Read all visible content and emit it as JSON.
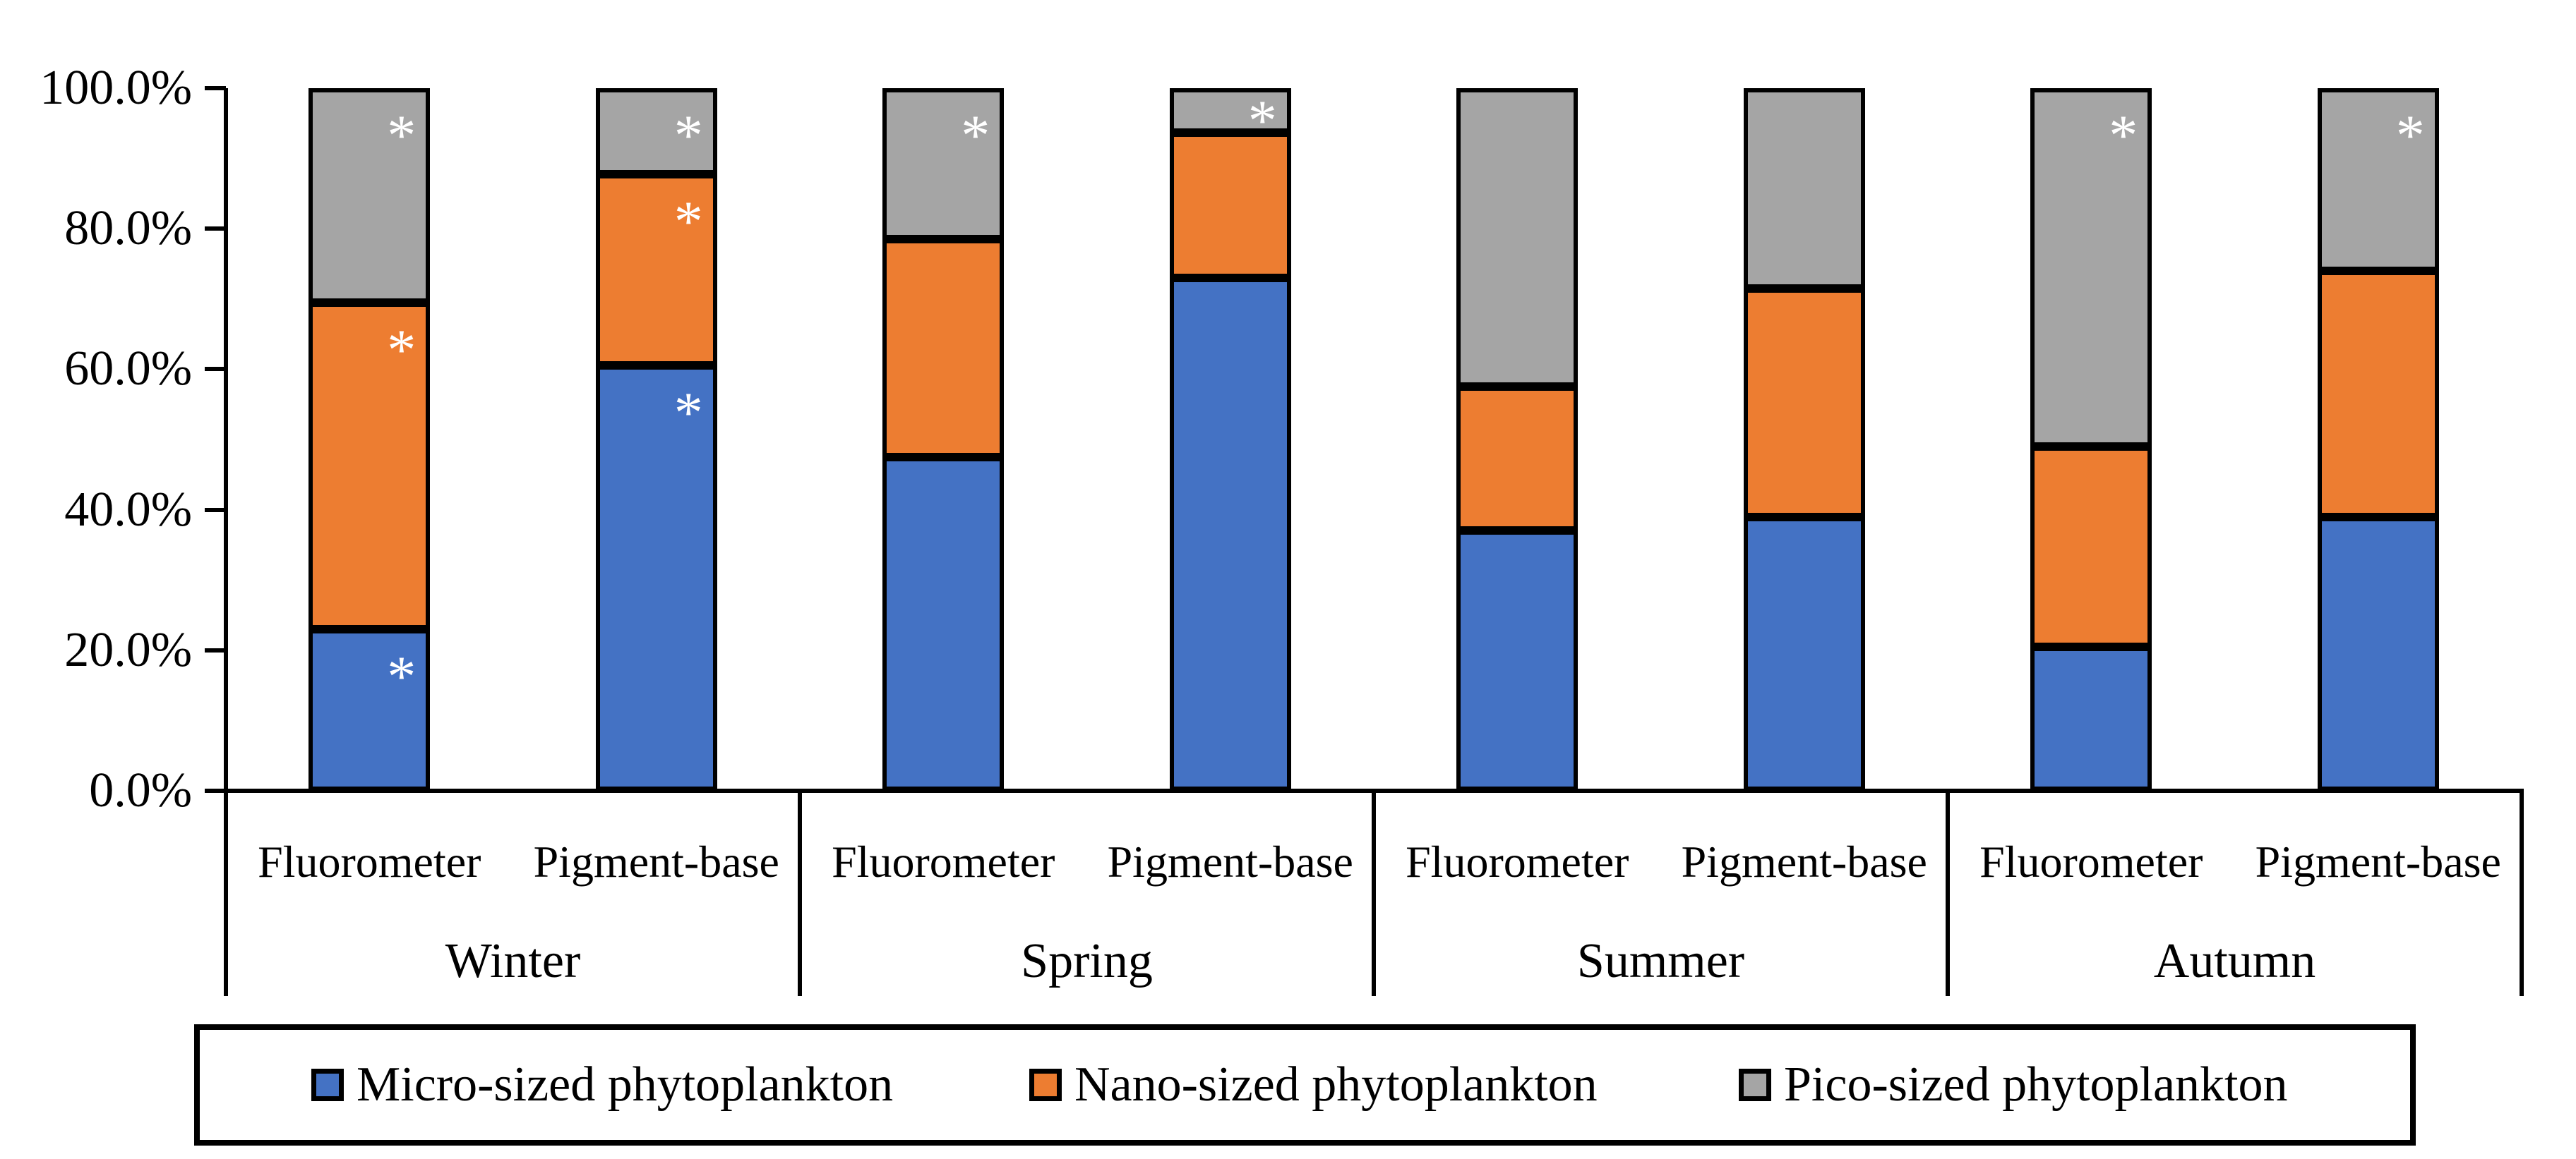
{
  "chart_data": {
    "type": "bar",
    "stacked": true,
    "percent_stacked": true,
    "title": "",
    "xlabel": "",
    "ylabel": "",
    "grid": false,
    "legend_position": "bottom",
    "significance_marker": "*",
    "y_axis": {
      "min": 0,
      "max": 100,
      "tick_values": [
        100,
        80,
        60,
        40,
        20,
        0
      ],
      "tick_labels": [
        "100.0%",
        "80.0%",
        "60.0%",
        "40.0%",
        "20.0%",
        "0.0%"
      ]
    },
    "series": [
      {
        "name": "Micro-sized phytoplankton",
        "color": "#4472C4"
      },
      {
        "name": "Nano-sized phytoplankton",
        "color": "#ED7D31"
      },
      {
        "name": "Pico-sized phytoplankton",
        "color": "#A5A5A5"
      }
    ],
    "groups": [
      {
        "label": "Winter",
        "bars": [
          {
            "label": "Fluorometer",
            "values": [
              23.0,
              46.5,
              30.5
            ],
            "asterisks": [
              true,
              true,
              true
            ]
          },
          {
            "label": "Pigment-base",
            "values": [
              60.5,
              27.3,
              12.2
            ],
            "asterisks": [
              true,
              true,
              true
            ]
          }
        ]
      },
      {
        "label": "Spring",
        "bars": [
          {
            "label": "Fluorometer",
            "values": [
              47.5,
              31.0,
              21.5
            ],
            "asterisks": [
              false,
              false,
              true
            ]
          },
          {
            "label": "Pigment-base",
            "values": [
              73.0,
              20.7,
              6.3
            ],
            "asterisks": [
              false,
              false,
              true
            ]
          }
        ]
      },
      {
        "label": "Summer",
        "bars": [
          {
            "label": "Fluorometer",
            "values": [
              37.0,
              20.5,
              42.5
            ],
            "asterisks": [
              false,
              false,
              false
            ]
          },
          {
            "label": "Pigment-base",
            "values": [
              39.0,
              32.5,
              28.5
            ],
            "asterisks": [
              false,
              false,
              false
            ]
          }
        ]
      },
      {
        "label": "Autumn",
        "bars": [
          {
            "label": "Fluorometer",
            "values": [
              20.5,
              28.5,
              51.0
            ],
            "asterisks": [
              false,
              false,
              true
            ]
          },
          {
            "label": "Pigment-base",
            "values": [
              39.0,
              35.0,
              26.0
            ],
            "asterisks": [
              false,
              false,
              true
            ]
          }
        ]
      }
    ]
  },
  "colors": {
    "micro": "#4472C4",
    "nano": "#ED7D31",
    "pico": "#A5A5A5",
    "axis": "#000000",
    "background": "#FFFFFF",
    "asterisk": "#FFFFFF"
  }
}
